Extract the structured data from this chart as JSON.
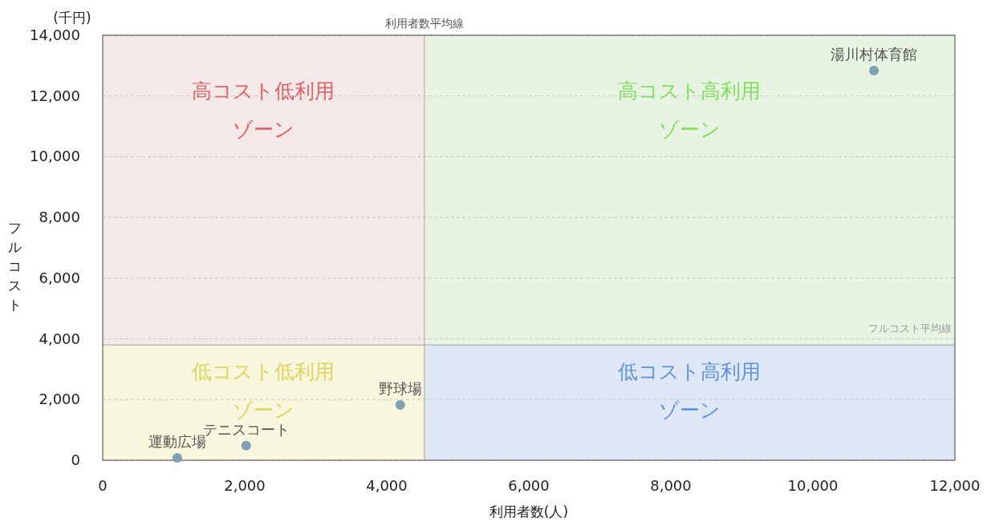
{
  "chart_data": {
    "type": "scatter",
    "xlabel": "利用者数(人)",
    "ylabel": "フルコスト",
    "xlim": [
      0,
      12000
    ],
    "xticks": [
      {
        "value": 0,
        "label": "0"
      },
      {
        "value": 2000,
        "label": "2,000"
      },
      {
        "value": 4000,
        "label": "4,000"
      },
      {
        "value": 6000,
        "label": "6,000"
      },
      {
        "value": 8000,
        "label": "8,000"
      },
      {
        "value": 10000,
        "label": "10,000"
      },
      {
        "value": 12000,
        "label": "12,000"
      }
    ],
    "ylim": [
      0,
      14000
    ],
    "yticks": [
      {
        "value": 0,
        "label": "0"
      },
      {
        "value": 2000,
        "label": "2,000"
      },
      {
        "value": 4000,
        "label": "4,000"
      },
      {
        "value": 6000,
        "label": "6,000"
      },
      {
        "value": 8000,
        "label": "8,000"
      },
      {
        "value": 10000,
        "label": "10,000"
      },
      {
        "value": 12000,
        "label": "12,000"
      },
      {
        "value": 14000,
        "label": "14,000"
      }
    ],
    "grid": "y",
    "marker": "circle",
    "series": [
      {
        "color": "#7f9fb5",
        "x": [
          10860,
          4190,
          2020,
          1050
        ],
        "values": [
          12840,
          1820,
          480,
          80
        ]
      }
    ],
    "ref_lines": [
      {
        "axis": "x",
        "value": 4530,
        "label": "利用者数平均線",
        "color": "#b0a0a0"
      },
      {
        "axis": "y",
        "value": 3800,
        "label": "フルコスト平均線",
        "color": "#a0a0a0"
      }
    ],
    "bands": [
      {
        "axis": "x",
        "from": 0,
        "to": 4530,
        "label": "高コスト低利用ゾーン",
        "color": "#f5e8e8"
      },
      {
        "axis": "x",
        "from": 4530,
        "to": 12000,
        "label": "高コスト高利用ゾーン",
        "color": "#e6f4e1"
      },
      {
        "axis": "x",
        "from": 0,
        "to": 4530,
        "label": "低コスト低利用ゾーン",
        "color": "#f8f6dc"
      },
      {
        "axis": "x",
        "from": 4530,
        "to": 12000,
        "label": "低コスト高利用ゾーン",
        "color": "#dde7f6"
      }
    ],
    "annotations": [
      "(千円)",
      {
        "text": "湯川村体育館",
        "x": 10860,
        "y": 12840
      },
      {
        "text": "野球場",
        "x": 4190,
        "y": 1820
      },
      {
        "text": "テニスコート",
        "x": 2020,
        "y": 475
      },
      {
        "text": "運動広場",
        "x": 1050,
        "y": 80
      }
    ]
  }
}
